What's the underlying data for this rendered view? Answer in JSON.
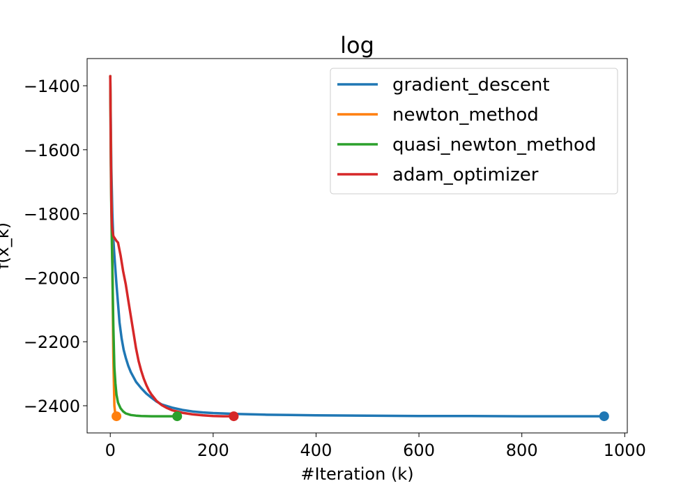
{
  "chart_data": {
    "type": "line",
    "title": "log",
    "xlabel": "#Iteration (k)",
    "ylabel": "f(x_k)",
    "xlim": [
      -45,
      1005
    ],
    "ylim": [
      -2485,
      -1315
    ],
    "xticks": [
      0,
      200,
      400,
      600,
      800,
      1000
    ],
    "yticks": [
      -1400,
      -1600,
      -1800,
      -2000,
      -2200,
      -2400
    ],
    "grid": false,
    "legend_position": "top-right",
    "series": [
      {
        "name": "gradient_descent",
        "color": "#1f77b4",
        "x": [
          0,
          2,
          4,
          6,
          8,
          10,
          12,
          15,
          18,
          22,
          26,
          30,
          35,
          40,
          45,
          50,
          60,
          70,
          80,
          90,
          100,
          120,
          140,
          160,
          180,
          200,
          250,
          300,
          350,
          400,
          500,
          600,
          700,
          800,
          900,
          960
        ],
        "y": [
          -1370,
          -1650,
          -1800,
          -1880,
          -1930,
          -1975,
          -2020,
          -2080,
          -2140,
          -2190,
          -2225,
          -2250,
          -2275,
          -2295,
          -2310,
          -2325,
          -2345,
          -2362,
          -2375,
          -2387,
          -2396,
          -2406,
          -2413,
          -2418,
          -2421,
          -2423,
          -2426,
          -2428,
          -2429,
          -2430,
          -2431,
          -2432,
          -2432,
          -2433,
          -2433,
          -2433
        ]
      },
      {
        "name": "newton_method",
        "color": "#ff7f0e",
        "x": [
          0,
          2,
          4,
          6,
          8,
          10,
          12
        ],
        "y": [
          -1370,
          -1720,
          -1950,
          -2250,
          -2400,
          -2430,
          -2433
        ]
      },
      {
        "name": "quasi_newton_method",
        "color": "#2ca02c",
        "x": [
          0,
          1,
          2,
          3,
          4,
          5,
          6,
          7,
          8,
          10,
          12,
          15,
          20,
          25,
          30,
          40,
          50,
          60,
          80,
          100,
          130
        ],
        "y": [
          -1370,
          -1650,
          -1780,
          -1880,
          -1970,
          -2060,
          -2150,
          -2220,
          -2280,
          -2330,
          -2365,
          -2390,
          -2408,
          -2418,
          -2424,
          -2429,
          -2431,
          -2432,
          -2433,
          -2433,
          -2433
        ]
      },
      {
        "name": "adam_optimizer",
        "color": "#d62728",
        "x": [
          0,
          1,
          2,
          3,
          4,
          5,
          6,
          8,
          10,
          12,
          15,
          20,
          25,
          30,
          35,
          40,
          45,
          50,
          55,
          60,
          65,
          70,
          75,
          80,
          90,
          100,
          110,
          120,
          140,
          160,
          180,
          200,
          220,
          240
        ],
        "y": [
          -1370,
          -1600,
          -1760,
          -1830,
          -1850,
          -1860,
          -1870,
          -1875,
          -1880,
          -1885,
          -1890,
          -1930,
          -1980,
          -2020,
          -2070,
          -2120,
          -2170,
          -2220,
          -2260,
          -2290,
          -2315,
          -2335,
          -2352,
          -2365,
          -2385,
          -2398,
          -2407,
          -2414,
          -2422,
          -2427,
          -2430,
          -2432,
          -2433,
          -2433
        ]
      }
    ]
  }
}
